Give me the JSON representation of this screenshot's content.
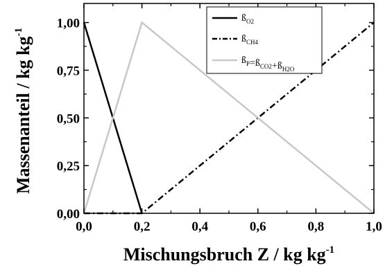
{
  "chart_data": {
    "type": "line",
    "xlabel": "Mischungsbruch Z / kg kg",
    "xlabel_sup": "-1",
    "ylabel": "Massenanteil / kg kg",
    "ylabel_sup": "-1",
    "xlim": [
      0,
      1
    ],
    "ylim": [
      0,
      1.1
    ],
    "x_ticks": [
      0,
      0.2,
      0.4,
      0.6,
      0.8,
      1.0
    ],
    "x_tick_labels": [
      "0,0",
      "0,2",
      "0,4",
      "0,6",
      "0,8",
      "1,0"
    ],
    "y_ticks": [
      0,
      0.25,
      0.5,
      0.75,
      1.0
    ],
    "y_tick_labels": [
      "0,00",
      "0,25",
      "0,50",
      "0,75",
      "1,00"
    ],
    "grid": false,
    "legend_position": "top-right",
    "series": [
      {
        "name": "ß_O2",
        "legend": {
          "base": "ß",
          "sub": "O2"
        },
        "color": "#000000",
        "style": "solid",
        "x": [
          0,
          0.2
        ],
        "y": [
          1.0,
          0.0
        ]
      },
      {
        "name": "ß_CH4",
        "legend": {
          "base": "ß",
          "sub": "CH4"
        },
        "color": "#000000",
        "style": "dash-dot",
        "x": [
          0,
          0.2,
          1.0
        ],
        "y": [
          0.0,
          0.0,
          1.0
        ]
      },
      {
        "name": "ß_P=ß_CO2+ß_H2O",
        "legend": {
          "parts": [
            [
              "ß",
              "P"
            ],
            [
              "=ß",
              "CO2"
            ],
            [
              "+ß",
              "H2O"
            ]
          ]
        },
        "color": "#c8c8c8",
        "style": "solid",
        "x": [
          0,
          0.2,
          1.0
        ],
        "y": [
          0.0,
          1.0,
          0.0
        ]
      }
    ]
  }
}
